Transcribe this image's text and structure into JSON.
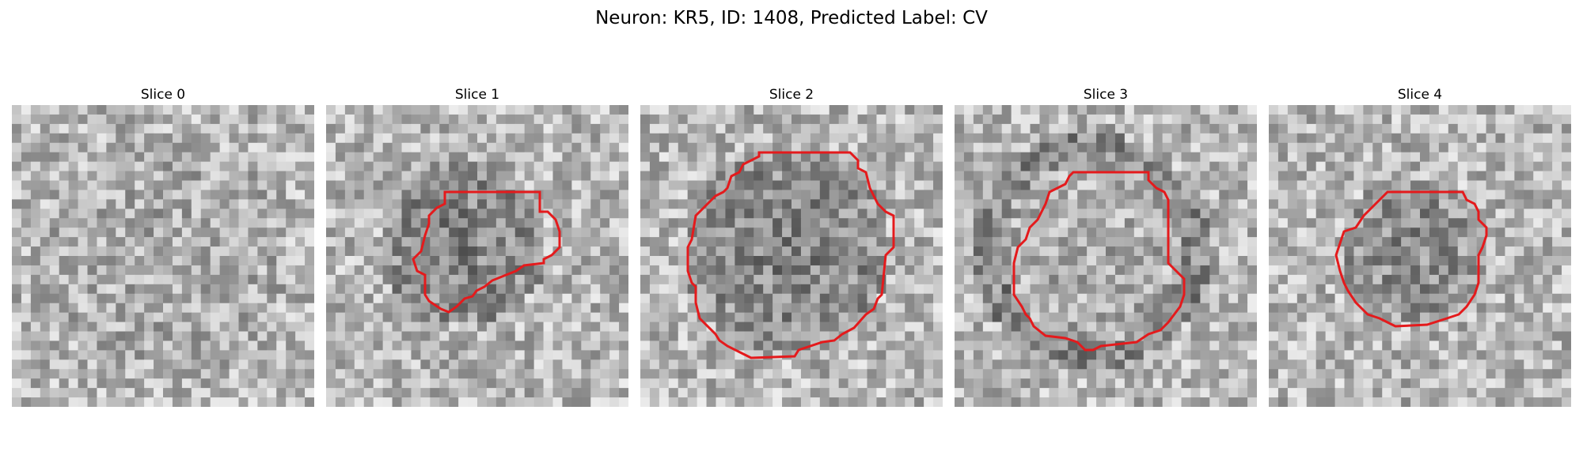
{
  "figure": {
    "title": "Neuron: KR5, ID: 1408, Predicted Label: CV",
    "outline_color": "#e41a1c",
    "colormap": "grayscale",
    "grid_cells": 32
  },
  "slices": [
    {
      "title": "Slice 0",
      "has_contour": false
    },
    {
      "title": "Slice 1",
      "has_contour": true
    },
    {
      "title": "Slice 2",
      "has_contour": true
    },
    {
      "title": "Slice 3",
      "has_contour": true
    },
    {
      "title": "Slice 4",
      "has_contour": true
    }
  ]
}
